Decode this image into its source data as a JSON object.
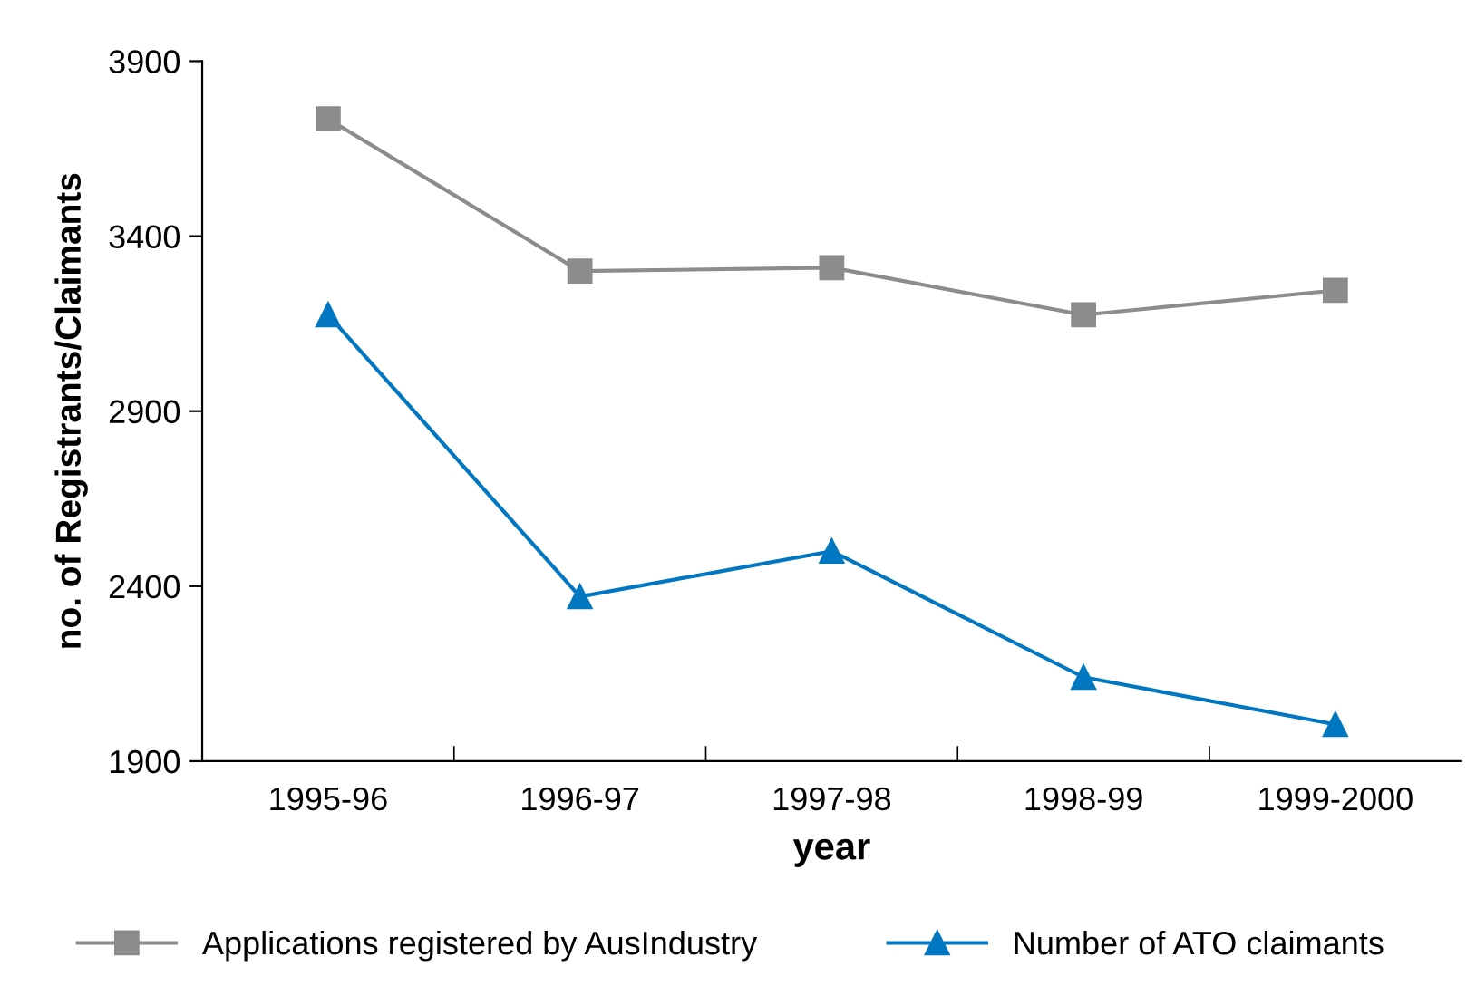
{
  "chart_data": {
    "type": "line",
    "xlabel": "year",
    "ylabel": "no. of Registrants/Claimants",
    "categories": [
      "1995-96",
      "1996-97",
      "1997-98",
      "1998-99",
      "1999-2000"
    ],
    "series": [
      {
        "name": "Applications registered by AusIndustry",
        "color": "#8c8c8c",
        "marker": "square",
        "values": [
          3735,
          3300,
          3310,
          3175,
          3245
        ]
      },
      {
        "name": "Number of ATO claimants",
        "color": "#0077c0",
        "marker": "triangle",
        "values": [
          3175,
          2370,
          2500,
          2140,
          2005
        ]
      }
    ],
    "ylim": [
      1900,
      3900
    ],
    "yticks": [
      1900,
      2400,
      2900,
      3400,
      3900
    ],
    "grid": false,
    "legend": "bottom",
    "line_style": "solid"
  }
}
